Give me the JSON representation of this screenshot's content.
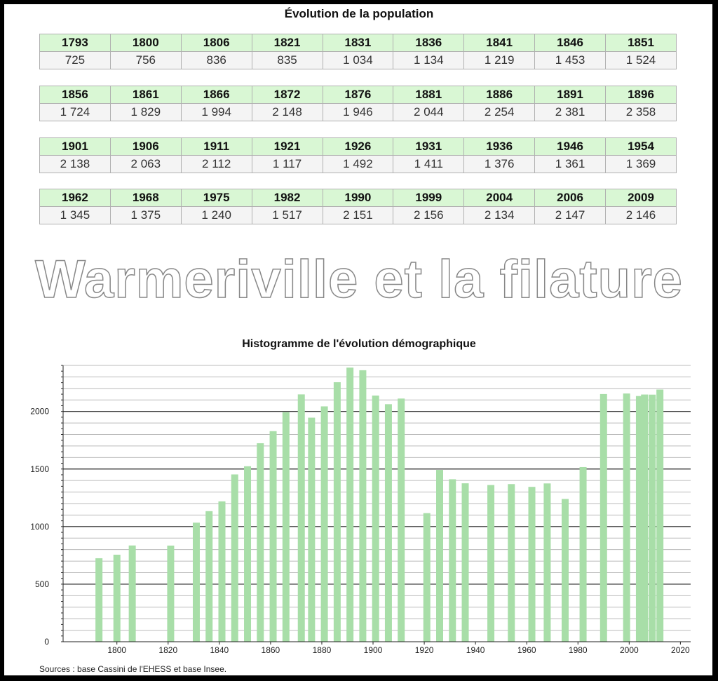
{
  "table_title": "Évolution de la population",
  "table_rows": [
    {
      "years": [
        "1793",
        "1800",
        "1806",
        "1821",
        "1831",
        "1836",
        "1841",
        "1846",
        "1851"
      ],
      "values": [
        "725",
        "756",
        "836",
        "835",
        "1 034",
        "1 134",
        "1 219",
        "1 453",
        "1 524"
      ]
    },
    {
      "years": [
        "1856",
        "1861",
        "1866",
        "1872",
        "1876",
        "1881",
        "1886",
        "1891",
        "1896"
      ],
      "values": [
        "1 724",
        "1 829",
        "1 994",
        "2 148",
        "1 946",
        "2 044",
        "2 254",
        "2 381",
        "2 358"
      ]
    },
    {
      "years": [
        "1901",
        "1906",
        "1911",
        "1921",
        "1926",
        "1931",
        "1936",
        "1946",
        "1954"
      ],
      "values": [
        "2 138",
        "2 063",
        "2 112",
        "1 117",
        "1 492",
        "1 411",
        "1 376",
        "1 361",
        "1 369"
      ]
    },
    {
      "years": [
        "1962",
        "1968",
        "1975",
        "1982",
        "1990",
        "1999",
        "2004",
        "2006",
        "2009"
      ],
      "values": [
        "1 345",
        "1 375",
        "1 240",
        "1 517",
        "2 151",
        "2 156",
        "2 134",
        "2 147",
        "2 146"
      ]
    }
  ],
  "watermark": "Warmeriville et la filature",
  "sources": "Sources : base Cassini de l'EHESS et base Insee.",
  "colors": {
    "bar": "#a8dea8",
    "header_bg": "#d9f7d4"
  },
  "chart_data": {
    "type": "bar",
    "title": "Histogramme de l'évolution démographique",
    "xlabel": "",
    "ylabel": "",
    "x": [
      1793,
      1800,
      1806,
      1821,
      1831,
      1836,
      1841,
      1846,
      1851,
      1856,
      1861,
      1866,
      1872,
      1876,
      1881,
      1886,
      1891,
      1896,
      1901,
      1906,
      1911,
      1921,
      1926,
      1931,
      1936,
      1946,
      1954,
      1962,
      1968,
      1975,
      1982,
      1990,
      1999,
      2004,
      2006,
      2009,
      2012
    ],
    "values": [
      725,
      756,
      836,
      835,
      1034,
      1134,
      1219,
      1453,
      1524,
      1724,
      1829,
      1994,
      2148,
      1946,
      2044,
      2254,
      2381,
      2358,
      2138,
      2063,
      2112,
      1117,
      1492,
      1411,
      1376,
      1361,
      1369,
      1345,
      1375,
      1240,
      1517,
      2151,
      2156,
      2134,
      2147,
      2146,
      2190
    ],
    "xlim": [
      1779,
      2024
    ],
    "ylim": [
      0,
      2400
    ],
    "xticks": [
      1800,
      1820,
      1840,
      1860,
      1880,
      1900,
      1920,
      1940,
      1960,
      1980,
      2000,
      2020
    ],
    "yticks": [
      0,
      500,
      1000,
      1500,
      2000
    ],
    "grid": true
  }
}
